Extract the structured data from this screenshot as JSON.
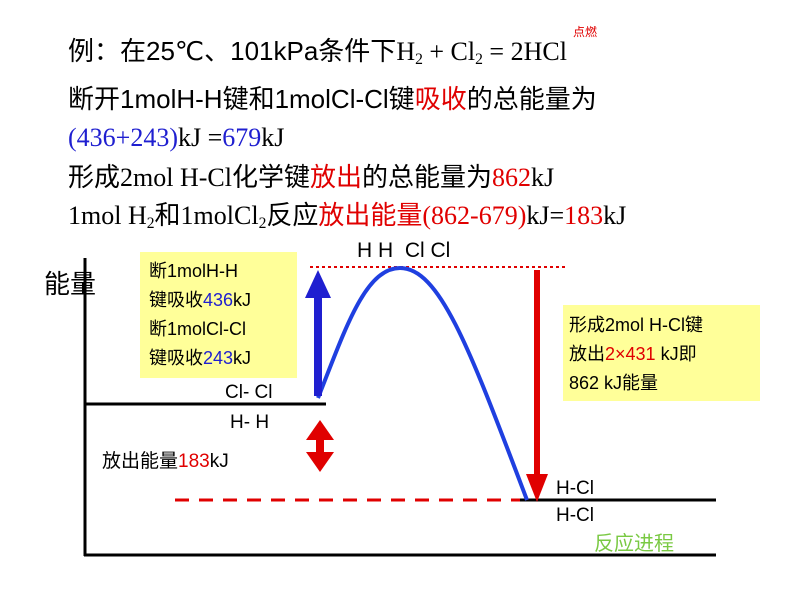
{
  "text_lines": [
    {
      "runs": [
        {
          "text": "例：在25℃、101kPa条件下"
        },
        {
          "text": "H",
          "font": "serif"
        },
        {
          "text": "2",
          "font": "serif",
          "sub": true
        },
        {
          "text": " + Cl",
          "font": "serif"
        },
        {
          "text": "2",
          "font": "serif",
          "sub": true
        },
        {
          "text": " = 2HCl",
          "font": "serif"
        }
      ]
    },
    {
      "runs": [
        {
          "text": "断开1molH-H键和1molCl-Cl键"
        },
        {
          "text": "吸收",
          "color": "#e00000"
        },
        {
          "text": "的总能量为"
        }
      ]
    },
    {
      "runs": [
        {
          "text": "(436+243)",
          "font": "serif",
          "color": "#1f1fd0"
        },
        {
          "text": "kJ =",
          "font": "serif"
        },
        {
          "text": "679",
          "font": "serif",
          "color": "#1f1fd0"
        },
        {
          "text": "kJ",
          "font": "serif"
        }
      ]
    },
    {
      "runs": [
        {
          "text": "形成"
        },
        {
          "text": "2mol H-Cl",
          "font": "serif"
        },
        {
          "text": "化学键"
        },
        {
          "text": "放出",
          "color": "#e00000"
        },
        {
          "text": "的总能量为"
        },
        {
          "text": "862",
          "font": "serif",
          "color": "#e00000"
        },
        {
          "text": "kJ",
          "font": "serif"
        }
      ]
    },
    {
      "runs": [
        {
          "text": "1mol H",
          "font": "serif"
        },
        {
          "text": "2",
          "font": "serif",
          "sub": true
        },
        {
          "text": "和"
        },
        {
          "text": "1molCl",
          "font": "serif"
        },
        {
          "text": "2",
          "font": "serif",
          "sub": true
        },
        {
          "text": "反应"
        },
        {
          "text": "放出能量",
          "color": "#e00000"
        },
        {
          "text": "(862-679)",
          "font": "serif",
          "color": "#e00000"
        },
        {
          "text": "kJ=",
          "font": "serif"
        },
        {
          "text": "183",
          "font": "serif",
          "color": "#e00000"
        },
        {
          "text": "kJ",
          "font": "serif"
        }
      ]
    }
  ],
  "condition": "点燃",
  "y_axis_label": "能量",
  "x_axis_label": "反应进程",
  "labels": [
    {
      "runs": [
        {
          "text": "H H  Cl Cl"
        }
      ]
    },
    {
      "runs": [
        {
          "text": "Cl- Cl"
        }
      ]
    },
    {
      "runs": [
        {
          "text": "H- H"
        }
      ]
    },
    {
      "runs": [
        {
          "text": "H-Cl"
        }
      ]
    },
    {
      "runs": [
        {
          "text": "H-Cl"
        }
      ]
    },
    {
      "runs": [
        {
          "text": "放出能量"
        },
        {
          "text": "183",
          "color": "#e00000"
        },
        {
          "text": "kJ"
        }
      ]
    },
    {
      "runs": [
        {
          "text": "断1molH-H"
        }
      ]
    },
    {
      "runs": [
        {
          "text": "键吸收"
        },
        {
          "text": "436",
          "color": "#1f1fd0"
        },
        {
          "text": "kJ"
        }
      ]
    },
    {
      "runs": [
        {
          "text": "断1molCl-Cl"
        }
      ]
    },
    {
      "runs": [
        {
          "text": "键吸收"
        },
        {
          "text": "243",
          "color": "#1f1fd0"
        },
        {
          "text": "kJ"
        }
      ]
    },
    {
      "runs": [
        {
          "text": "形成2mol H-Cl键"
        }
      ]
    },
    {
      "runs": [
        {
          "text": "放出"
        },
        {
          "text": "2×431",
          "color": "#e00000"
        },
        {
          "text": " kJ即"
        }
      ]
    },
    {
      "runs": [
        {
          "text": "862 kJ能量"
        }
      ]
    }
  ]
}
